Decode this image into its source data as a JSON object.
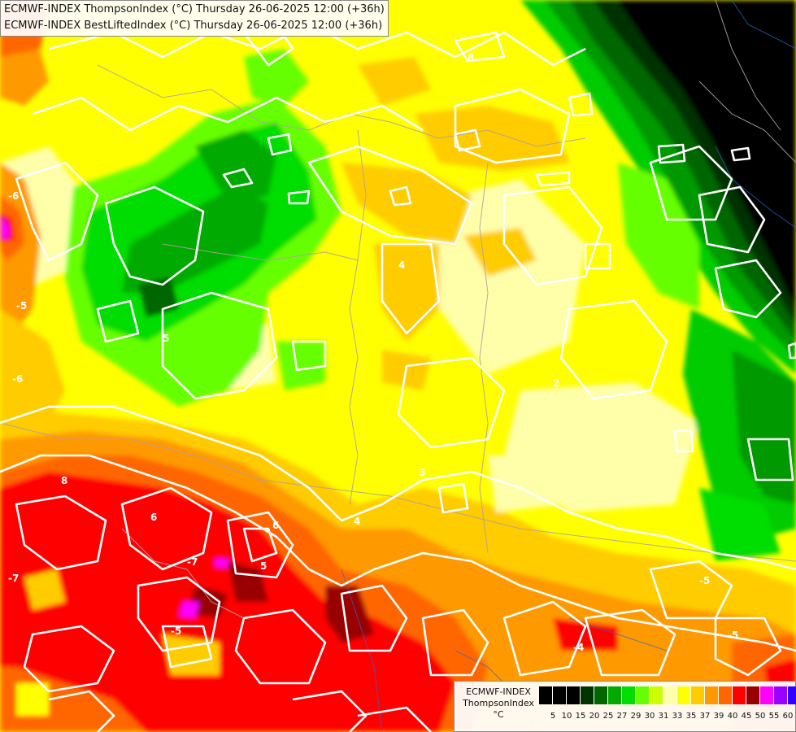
{
  "titles": {
    "line1": "ECMWF-INDEX ThompsonIndex (°C) Thursday 26-06-2025 12:00 (+36h)",
    "line2": "ECMWF-INDEX BestLiftedIndex (°C) Thursday 26-06-2025 12:00 (+36h)"
  },
  "legend": {
    "line1": "ECMWF-INDEX",
    "line2": "ThompsonIndex",
    "unit": "°C",
    "ticks": [
      "5",
      "10",
      "15",
      "20",
      "25",
      "27",
      "29",
      "30",
      "31",
      "33",
      "35",
      "37",
      "39",
      "40",
      "45",
      "50",
      "55",
      "60"
    ],
    "colors": [
      "#000000",
      "#000000",
      "#000000",
      "#003300",
      "#006600",
      "#00aa00",
      "#00dd00",
      "#66ff00",
      "#ccff00",
      "#ffffaa",
      "#ffff00",
      "#ffcc00",
      "#ff9900",
      "#ff6600",
      "#ff0000",
      "#990000",
      "#ff00ff",
      "#9900ff",
      "#3300ff",
      "#0000ff"
    ]
  },
  "contour_labels": [
    "5",
    "6",
    "8",
    "4",
    "5",
    "2",
    "3",
    "7",
    "4",
    "5",
    "6",
    "-6",
    "-5",
    "-5",
    "-7",
    "-6",
    "-4",
    "-5",
    "-5",
    "-4",
    "-2",
    "-3",
    "-4",
    "-5",
    "-6"
  ]
}
